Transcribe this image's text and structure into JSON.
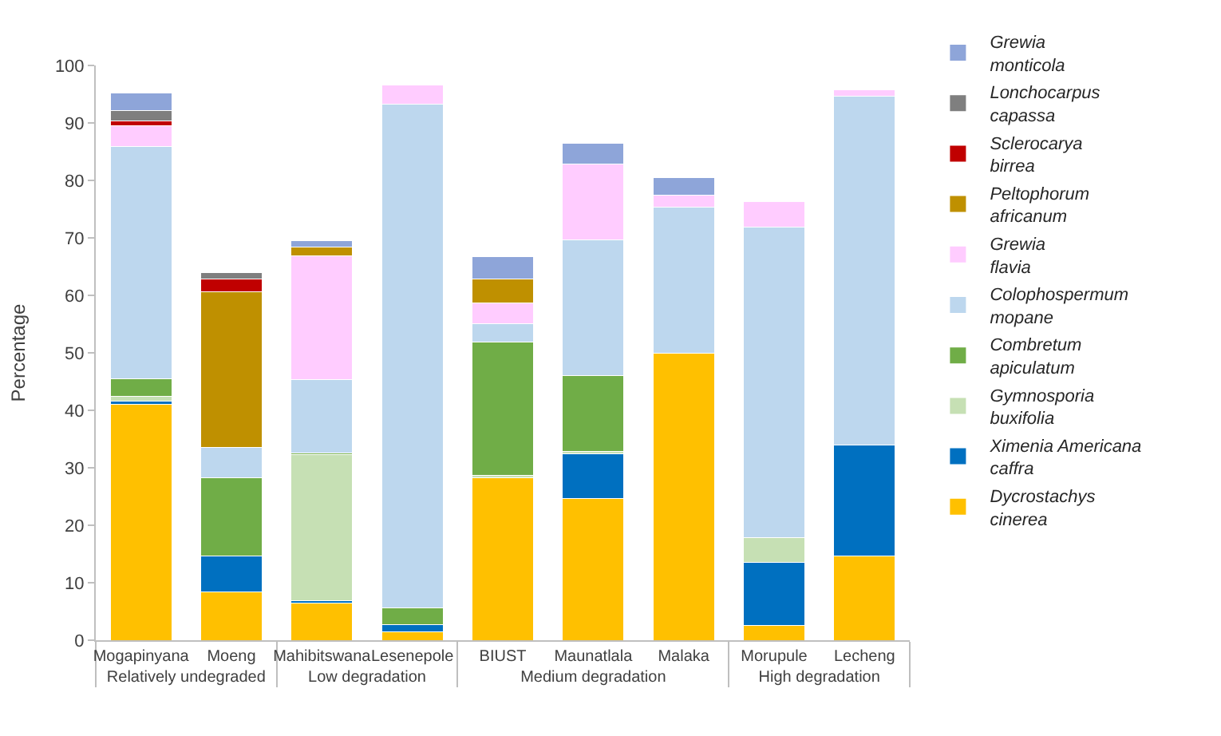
{
  "chart_data": {
    "type": "bar",
    "stacked": true,
    "ylabel": "Percentage",
    "ylim": [
      0,
      100
    ],
    "yticks": [
      0,
      10,
      20,
      30,
      40,
      50,
      60,
      70,
      80,
      90,
      100
    ],
    "grid": false,
    "legend": "right",
    "categories": [
      "Mogapinyana",
      "Moeng",
      "Mahibitswana",
      "Lesenepole",
      "BIUST",
      "Maunatlala",
      "Malaka",
      "Morupule",
      "Lecheng"
    ],
    "annotations": [
      "Relatively undegraded",
      "Low degradation",
      "Medium degradation",
      "High degradation"
    ],
    "series": [
      {
        "name": "Dycrostachys cinerea",
        "color": "#ffc000",
        "values": [
          41,
          8.4,
          6.5,
          1.4,
          28.3,
          24.7,
          50,
          2.6,
          14.7
        ]
      },
      {
        "name": "Ximenia Americana caffra",
        "color": "#0070c0",
        "values": [
          0.6,
          6.3,
          0.4,
          1.3,
          null,
          7.8,
          null,
          11,
          19.3
        ]
      },
      {
        "name": "Gymnosporia buxifolia",
        "color": "#c6e0b4",
        "values": [
          0.8,
          null,
          25.4,
          null,
          0.4,
          0.3,
          null,
          4.2,
          null
        ]
      },
      {
        "name": "Combretum apiculatum",
        "color": "#70ad47",
        "values": [
          3.1,
          13.6,
          0.3,
          2.9,
          23.2,
          13.2,
          null,
          null,
          null
        ]
      },
      {
        "name": "Colophospermum mopane",
        "color": "#bdd7ee",
        "values": [
          40.4,
          5.2,
          12.8,
          87.7,
          3.2,
          23.7,
          25.4,
          54.1,
          60.7
        ]
      },
      {
        "name": "Grewia flavia",
        "color": "#ffccff",
        "values": [
          3.6,
          null,
          21.5,
          3.3,
          3.6,
          13.2,
          2,
          4.4,
          1
        ]
      },
      {
        "name": "Peltophorum africanum",
        "color": "#bf9000",
        "values": [
          null,
          27.1,
          1.5,
          null,
          4.1,
          null,
          null,
          null,
          null
        ]
      },
      {
        "name": "Sclerocarya birrea",
        "color": "#c00000",
        "values": [
          0.9,
          2.3,
          null,
          null,
          null,
          null,
          null,
          null,
          null
        ]
      },
      {
        "name": "Lonchocarpus capassa",
        "color": "#7f7f7f",
        "values": [
          1.7,
          1,
          null,
          null,
          null,
          null,
          null,
          null,
          null
        ]
      },
      {
        "name": "Grewia monticola",
        "color": "#8ea5d9",
        "values": [
          3.1,
          null,
          1.1,
          null,
          4,
          3.5,
          3.1,
          null,
          null
        ]
      }
    ]
  }
}
